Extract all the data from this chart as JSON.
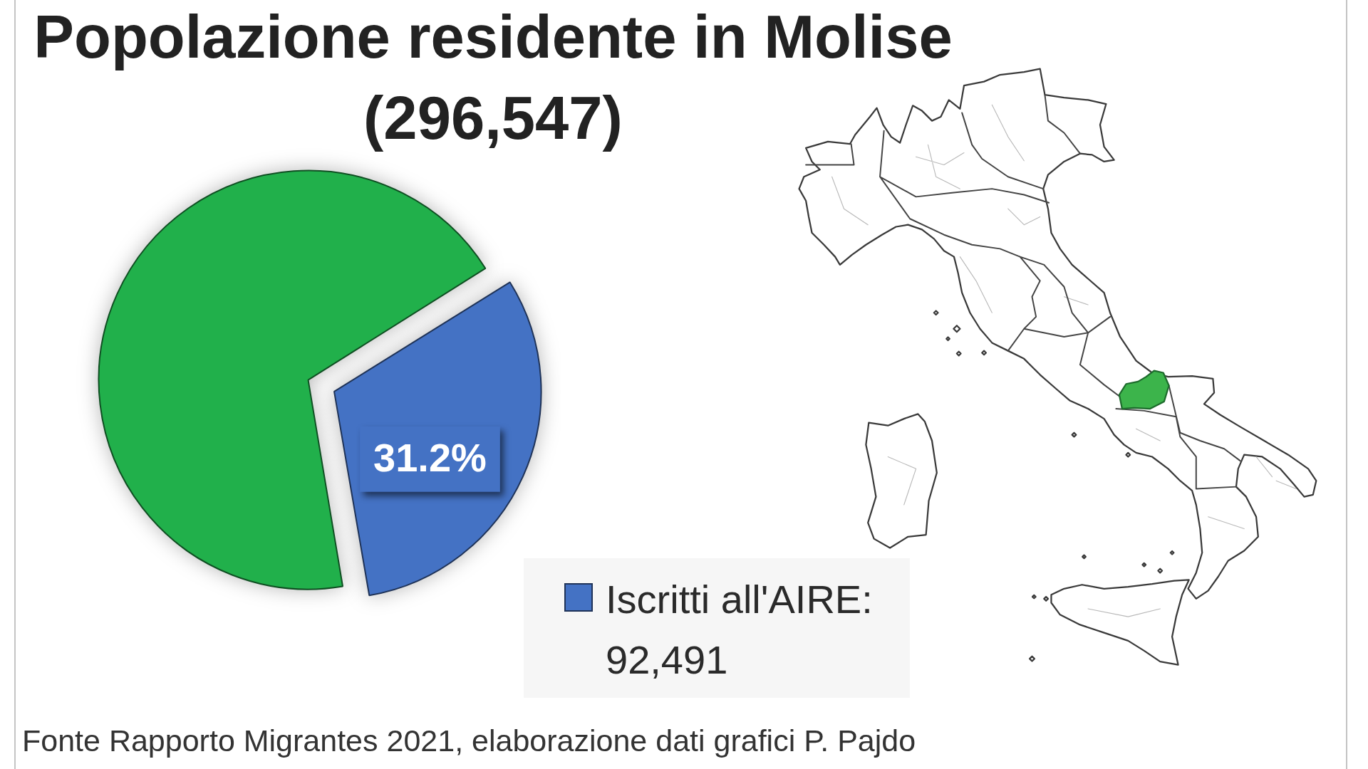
{
  "chart_data": {
    "type": "pie",
    "title": "Popolazione residente in Molise",
    "subtitle": "(296,547)",
    "categories": [
      "Iscritti all'AIRE: 92,491",
      null
    ],
    "values": [
      31.2,
      68.8
    ],
    "colors": [
      "#4472c4",
      "#21b04b"
    ],
    "value_labels": [
      "31.2%",
      null
    ],
    "legend": "bottom right",
    "annotations": [
      "Fonte Rapporto Migrantes 2021, elaborazione dati grafici P. Pajdo"
    ]
  }
}
